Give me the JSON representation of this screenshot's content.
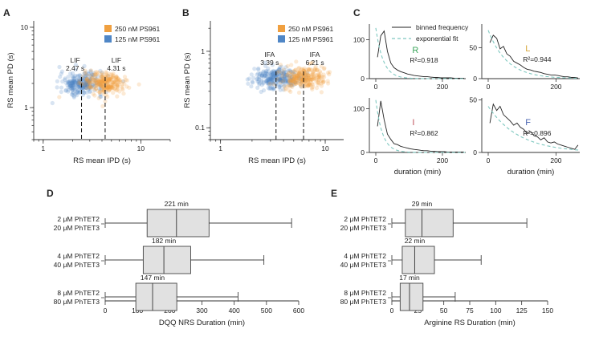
{
  "colors": {
    "orange": "#f0a040",
    "blue": "#4f86c6",
    "black": "#222222",
    "teal": "#7fc8c0",
    "R": "#3aa55a",
    "L": "#d7a73a",
    "I": "#c0505a",
    "F": "#4a64b0"
  },
  "panels": {
    "A": "A",
    "B": "B",
    "C": "C",
    "D": "D",
    "E": "E"
  },
  "chart_data": [
    {
      "id": "A",
      "type": "scatter",
      "xscale": "log",
      "yscale": "log",
      "xlabel": "RS mean IPD (s)",
      "ylabel": "RS mean PD (s)",
      "xlim": [
        0.8,
        20
      ],
      "ylim": [
        0.4,
        12
      ],
      "xticks": [
        {
          "v": 1,
          "l": "1"
        },
        {
          "v": 10,
          "l": "10"
        }
      ],
      "yticks": [
        {
          "v": 1,
          "l": "1"
        },
        {
          "v": 10,
          "l": "10"
        }
      ],
      "legend": [
        {
          "name": "250 nM PS961",
          "color": "#f0a040"
        },
        {
          "name": "125 nM PS961",
          "color": "#4f86c6"
        }
      ],
      "clusters": [
        {
          "name": "125 nM PS961",
          "color": "#4f86c6",
          "center": [
            2.47,
            2.0
          ]
        },
        {
          "name": "250 nM PS961",
          "color": "#f0a040",
          "center": [
            4.31,
            2.0
          ]
        }
      ],
      "annotations": [
        {
          "label": "LIF",
          "value": "2.47 s",
          "x": 2.47
        },
        {
          "label": "LIF",
          "value": "4.31 s",
          "x": 4.31
        }
      ]
    },
    {
      "id": "B",
      "type": "scatter",
      "xscale": "log",
      "yscale": "log",
      "xlabel": "RS mean IPD (s)",
      "ylabel": "RS mean PD (s)",
      "xlim": [
        0.8,
        15
      ],
      "ylim": [
        0.07,
        2.5
      ],
      "xticks": [
        {
          "v": 1,
          "l": "1"
        },
        {
          "v": 10,
          "l": "10"
        }
      ],
      "yticks": [
        {
          "v": 0.1,
          "l": "0.1"
        },
        {
          "v": 1,
          "l": "1"
        }
      ],
      "legend": [
        {
          "name": "250 nM PS961",
          "color": "#f0a040"
        },
        {
          "name": "125 nM PS961",
          "color": "#4f86c6"
        }
      ],
      "clusters": [
        {
          "name": "125 nM PS961",
          "color": "#4f86c6",
          "center": [
            3.39,
            0.45
          ]
        },
        {
          "name": "250 nM PS961",
          "color": "#f0a040",
          "center": [
            6.21,
            0.45
          ]
        }
      ],
      "annotations": [
        {
          "label": "IFA",
          "value": "3.39 s",
          "x": 3.39
        },
        {
          "label": "IFA",
          "value": "6.21 s",
          "x": 6.21
        }
      ]
    },
    {
      "id": "C",
      "type": "line",
      "xlabel": "duration (min)",
      "legend": [
        {
          "name": "binned frequency",
          "style": "solid"
        },
        {
          "name": "exponential fit",
          "style": "dashed"
        }
      ],
      "subplots": [
        {
          "residue": "R",
          "color_key": "R",
          "r2": "R²=0.918",
          "ymax": 140,
          "xmax": 270,
          "yticks": [
            {
              "v": 0,
              "l": "0"
            },
            {
              "v": 100,
              "l": "100"
            }
          ],
          "xticks": [
            {
              "v": 0,
              "l": "0"
            },
            {
              "v": 200,
              "l": "200"
            }
          ],
          "values": [
            55,
            110,
            122,
            70,
            40,
            28,
            22,
            18,
            15,
            12,
            10,
            8,
            7,
            6,
            5,
            5,
            4,
            3,
            3,
            2,
            2,
            2,
            2,
            1,
            1,
            1,
            1
          ],
          "fit_a": 130,
          "fit_tau": 22
        },
        {
          "residue": "L",
          "color_key": "L",
          "r2": "R²=0.944",
          "ymax": 88,
          "xmax": 270,
          "yticks": [
            {
              "v": 0,
              "l": "0"
            },
            {
              "v": 50,
              "l": "50"
            }
          ],
          "xticks": [
            {
              "v": 0,
              "l": "0"
            },
            {
              "v": 200,
              "l": "200"
            }
          ],
          "values": [
            58,
            70,
            65,
            48,
            52,
            40,
            36,
            28,
            25,
            22,
            18,
            15,
            14,
            12,
            11,
            10,
            8,
            7,
            6,
            6,
            5,
            4,
            3,
            3,
            2,
            2,
            1
          ],
          "fit_a": 78,
          "fit_tau": 55
        },
        {
          "residue": "I",
          "color_key": "I",
          "r2": "R²=0.862",
          "ymax": 125,
          "xmax": 270,
          "yticks": [
            {
              "v": 0,
              "l": "0"
            },
            {
              "v": 100,
              "l": "100"
            }
          ],
          "xticks": [
            {
              "v": 0,
              "l": "0"
            },
            {
              "v": 200,
              "l": "200"
            }
          ],
          "values": [
            60,
            118,
            75,
            42,
            30,
            20,
            18,
            14,
            12,
            10,
            8,
            7,
            6,
            5,
            4,
            4,
            3,
            3,
            2,
            2,
            2,
            1,
            1,
            1,
            1,
            1,
            1
          ],
          "fit_a": 120,
          "fit_tau": 20
        },
        {
          "residue": "F",
          "color_key": "F",
          "r2": "R²=0.896",
          "ymax": 52,
          "xmax": 270,
          "yticks": [
            {
              "v": 0,
              "l": "0"
            },
            {
              "v": 50,
              "l": "50"
            }
          ],
          "xticks": [
            {
              "v": 0,
              "l": "0"
            },
            {
              "v": 200,
              "l": "200"
            }
          ],
          "values": [
            28,
            46,
            40,
            44,
            36,
            33,
            30,
            26,
            28,
            24,
            22,
            18,
            20,
            16,
            15,
            12,
            14,
            10,
            9,
            10,
            8,
            7,
            6,
            5,
            4,
            3,
            7
          ],
          "fit_a": 44,
          "fit_tau": 90
        }
      ]
    },
    {
      "id": "D",
      "type": "boxplot",
      "orientation": "horizontal",
      "xlabel": "DQQ NRS Duration (min)",
      "xlim": [
        0,
        600
      ],
      "xticks": [
        0,
        100,
        200,
        300,
        400,
        500,
        600
      ],
      "series": [
        {
          "line1": "2 μM PhTET2",
          "line2": "20 μM PhTET3",
          "median_label": "221 min",
          "min": 0,
          "q1": 130,
          "median": 221,
          "q3": 322,
          "max": 578
        },
        {
          "line1": "4 μM PhTET2",
          "line2": "40 μM PhTET3",
          "median_label": "182 min",
          "min": 0,
          "q1": 118,
          "median": 182,
          "q3": 265,
          "max": 492
        },
        {
          "line1": "8 μM PhTET2",
          "line2": "80 μM PhTET3",
          "median_label": "147 min",
          "min": 0,
          "q1": 95,
          "median": 147,
          "q3": 222,
          "max": 412
        }
      ]
    },
    {
      "id": "E",
      "type": "boxplot",
      "orientation": "horizontal",
      "xlabel": "Arginine RS Duration (min)",
      "xlim": [
        0,
        150
      ],
      "xticks": [
        0,
        25,
        50,
        75,
        100,
        125,
        150
      ],
      "series": [
        {
          "line1": "2 μM PhTET2",
          "line2": "20 μM PhTET3",
          "median_label": "29 min",
          "min": 0,
          "q1": 13,
          "median": 29,
          "q3": 59,
          "max": 130
        },
        {
          "line1": "4 μM PhTET2",
          "line2": "40 μM PhTET3",
          "median_label": "22 min",
          "min": 0,
          "q1": 10,
          "median": 22,
          "q3": 41,
          "max": 86
        },
        {
          "line1": "8 μM PhTET2",
          "line2": "80 μM PhTET3",
          "median_label": "17 min",
          "min": 0,
          "q1": 8,
          "median": 17,
          "q3": 30,
          "max": 61
        }
      ]
    }
  ]
}
